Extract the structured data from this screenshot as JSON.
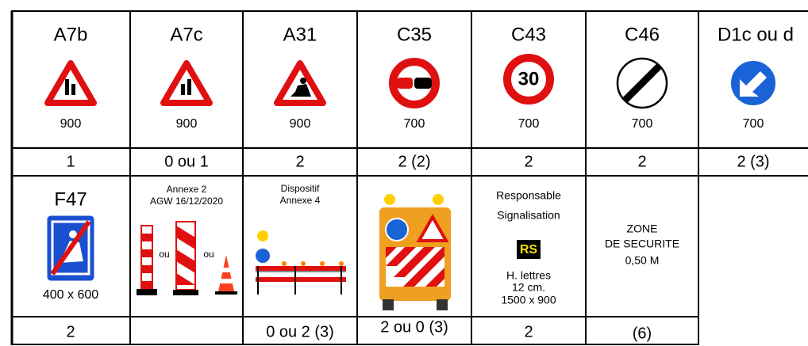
{
  "top_row": [
    {
      "code": "A7b",
      "size": "900",
      "count": "1"
    },
    {
      "code": "A7c",
      "size": "900",
      "count": "0 ou 1"
    },
    {
      "code": "A31",
      "size": "900",
      "count": "2"
    },
    {
      "code": "C35",
      "size": "700",
      "count": "2 (2)"
    },
    {
      "code": "C43",
      "size": "700",
      "count": "2",
      "sign_text": "30"
    },
    {
      "code": "C46",
      "size": "700",
      "count": "2"
    },
    {
      "code": "D1c ou d",
      "size": "700",
      "count": "2 (3)"
    }
  ],
  "bottom_row": [
    {
      "code": "F47",
      "size": "400 x 600",
      "count": "2"
    },
    {
      "lines": [
        "Annexe 2",
        "AGW 16/12/2020"
      ],
      "separators": [
        "ou",
        "ou"
      ]
    },
    {
      "lines": [
        "Dispositif",
        "Annexe 4"
      ],
      "count": "0 ou 2 (3)"
    },
    {
      "count": "2 ou 0 (3)"
    },
    {
      "lines": [
        "Responsable",
        "Signalisation"
      ],
      "badge": "RS",
      "notes": [
        "H. lettres",
        "12 cm.",
        "1500 x 900"
      ],
      "count": "2"
    },
    {
      "lines": [
        "ZONE",
        "DE SECURITE",
        "0,50 M"
      ],
      "count": "(6)"
    }
  ]
}
